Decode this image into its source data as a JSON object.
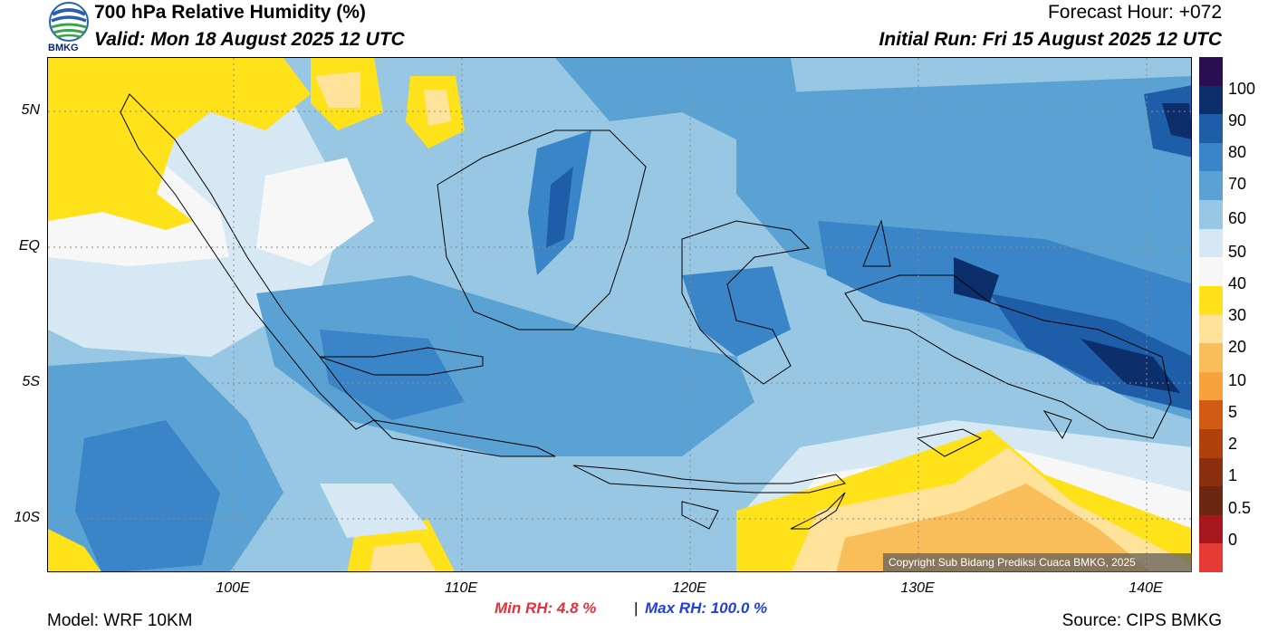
{
  "header": {
    "title": "700 hPa Relative Humidity (%)",
    "valid": "Valid: Mon 18 August 2025 12 UTC",
    "forecast_hour": "Forecast Hour: +072",
    "initial_run": "Initial Run: Fri 15 August 2025 12 UTC",
    "logo_text": "BMKG"
  },
  "map": {
    "lat_labels": [
      "5N",
      "EQ",
      "5S",
      "10S"
    ],
    "lon_labels": [
      "100E",
      "110E",
      "120E",
      "130E",
      "140E"
    ],
    "copyright": "Copyright Sub Bidang Prediksi Cuaca BMKG, 2025",
    "colors": {
      "rh_40_50": "#f7f7f7",
      "rh_50_60": "#d6e8f4",
      "rh_60_70": "#97c7e3",
      "rh_70_80": "#5aa2d4",
      "rh_80_90": "#3a85c8",
      "rh_90_100": "#1e5ea8",
      "rh_100": "#0c2e6a",
      "rh_30_40": "#ffe21a",
      "rh_20_30": "#ffe39a",
      "rh_10_20": "#f9bd5a"
    }
  },
  "colorbar": {
    "labels": [
      "100",
      "90",
      "80",
      "70",
      "60",
      "50",
      "40",
      "30",
      "20",
      "10",
      "5",
      "2",
      "1",
      "0.5",
      "0"
    ],
    "colors": [
      "#2a1052",
      "#0c2e6a",
      "#1e5ea8",
      "#3a85c8",
      "#5aa2d4",
      "#97c7e3",
      "#d6e8f4",
      "#f7f7f7",
      "#ffe21a",
      "#ffe39a",
      "#f9bd5a",
      "#f7a23a",
      "#d35a12",
      "#b0410c",
      "#8a2f10",
      "#6b2710",
      "#a8161e",
      "#e63a36"
    ]
  },
  "footer": {
    "min_rh": "Min RH:   4.8 %",
    "separator": "|",
    "max_rh": "Max RH: 100.0 %",
    "model": "Model: WRF 10KM",
    "source": "Source: CIPS BMKG"
  }
}
